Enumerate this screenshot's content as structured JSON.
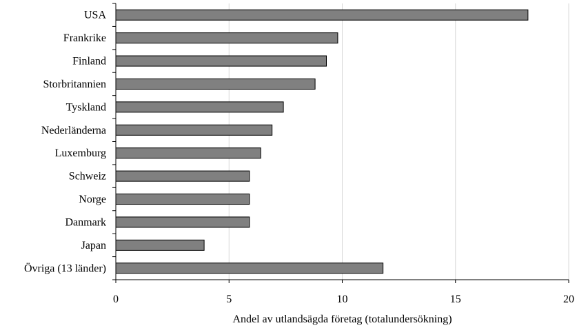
{
  "chart_data": {
    "type": "bar",
    "orientation": "horizontal",
    "categories": [
      "USA",
      "Frankrike",
      "Finland",
      "Storbritannien",
      "Tyskland",
      "Nederländerna",
      "Luxemburg",
      "Schweiz",
      "Norge",
      "Danmark",
      "Japan",
      "Övriga (13 länder)"
    ],
    "values": [
      18.2,
      9.8,
      9.3,
      8.8,
      7.4,
      6.9,
      6.4,
      5.9,
      5.9,
      5.9,
      3.9,
      11.8
    ],
    "xlabel": "Andel  av utlandsägda företag (totalundersökning)",
    "xlim": [
      0,
      20
    ],
    "xticks": [
      0,
      5,
      10,
      15,
      20
    ],
    "xtick_labels": [
      "0",
      "5",
      "10",
      "15",
      "20"
    ],
    "grid": "vertical",
    "bar_color": "#808080",
    "bar_edge_color": "#000000",
    "grid_color": "#d9d9d9"
  }
}
